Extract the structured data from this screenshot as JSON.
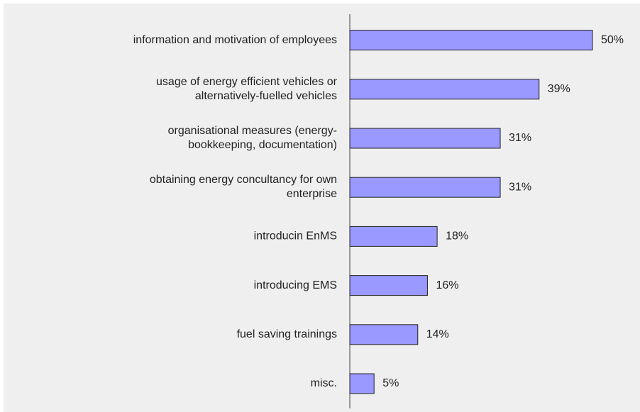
{
  "chart_data": {
    "type": "bar",
    "orientation": "horizontal",
    "categories": [
      "information and motivation of employees",
      "usage of energy efficient vehicles or\nalternatively-fuelled vehicles",
      "organisational measures (energy-\nbookkeeping, documentation)",
      "obtaining energy concultancy for own\nenterprise",
      "introducin EnMS",
      "introducing EMS",
      "fuel saving trainings",
      "misc."
    ],
    "values": [
      50,
      39,
      31,
      31,
      18,
      16,
      14,
      5
    ],
    "value_labels": [
      "50%",
      "39%",
      "31%",
      "31%",
      "18%",
      "16%",
      "14%",
      "5%"
    ],
    "color": "#9999ff"
  }
}
